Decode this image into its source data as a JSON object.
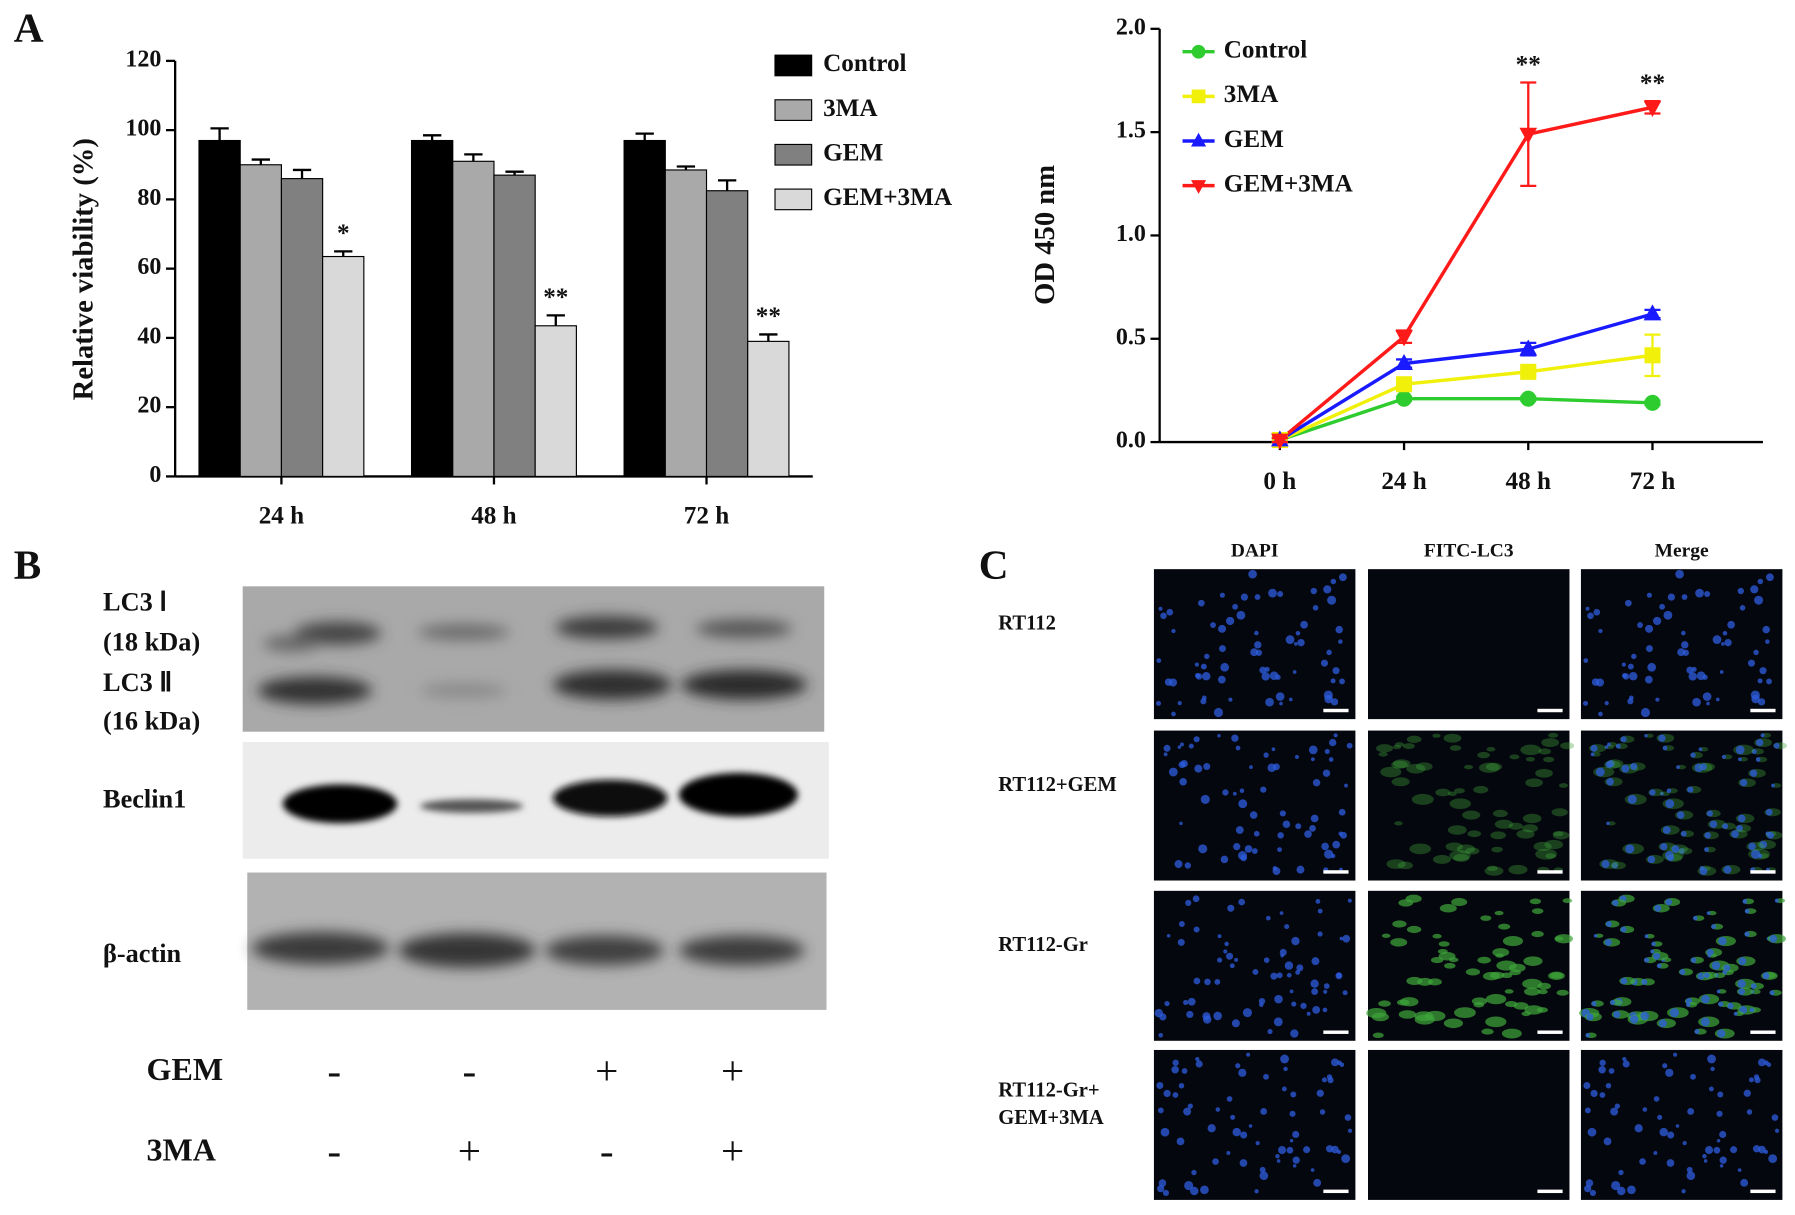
{
  "panel_labels": [
    "A",
    "B",
    "C"
  ],
  "chart_data": [
    {
      "type": "bar",
      "ylabel": "Relative viability (%)",
      "categories": [
        "24 h",
        "48 h",
        "72 h"
      ],
      "ylim": [
        0,
        120
      ],
      "yticks": [
        0,
        20,
        40,
        60,
        80,
        100,
        120
      ],
      "legend": "right",
      "series": [
        {
          "name": "Control",
          "color": "#000000",
          "values": [
            97,
            97,
            97
          ],
          "errors": [
            3.5,
            1.5,
            2
          ]
        },
        {
          "name": "3MA",
          "color": "#a9a9a9",
          "values": [
            90,
            91,
            88.5
          ],
          "errors": [
            1.5,
            2,
            1
          ]
        },
        {
          "name": "GEM",
          "color": "#808080",
          "values": [
            86,
            87,
            82.5
          ],
          "errors": [
            2.5,
            1,
            3
          ]
        },
        {
          "name": "GEM+3MA",
          "color": "#d9d9d9",
          "values": [
            63.5,
            43.5,
            39
          ],
          "errors": [
            1.5,
            3,
            2
          ],
          "labels": [
            "*",
            "**",
            "**"
          ]
        }
      ]
    },
    {
      "type": "line",
      "ylabel": "OD 450 nm",
      "categories": [
        "0 h",
        "24 h",
        "48 h",
        "72 h"
      ],
      "ylim": [
        0,
        2
      ],
      "yticks": [
        {
          "value": 0,
          "label": "0.0"
        },
        {
          "value": 0.5,
          "label": "0.5"
        },
        {
          "value": 1,
          "label": "1.0"
        },
        {
          "value": 1.5,
          "label": "1.5"
        },
        {
          "value": 2,
          "label": "2.0"
        }
      ],
      "legend": "upper left",
      "series": [
        {
          "name": "Control",
          "color": "#2ecc2e",
          "marker": "circle",
          "values": [
            0.01,
            0.21,
            0.21,
            0.19
          ],
          "errors": [
            0.01,
            0.01,
            0.01,
            0.01
          ]
        },
        {
          "name": "3MA",
          "color": "#f0f00a",
          "marker": "square",
          "values": [
            0.01,
            0.28,
            0.34,
            0.42
          ],
          "errors": [
            0.01,
            0.02,
            0.02,
            0.1
          ]
        },
        {
          "name": "GEM",
          "color": "#1a1aff",
          "marker": "triangle-up",
          "values": [
            0.01,
            0.38,
            0.45,
            0.62
          ],
          "errors": [
            0.01,
            0.02,
            0.03,
            0.02
          ]
        },
        {
          "name": "GEM+3MA",
          "color": "#ff1a1a",
          "marker": "triangle-down",
          "values": [
            0.01,
            0.51,
            1.49,
            1.62
          ],
          "errors": [
            0.01,
            0.03,
            0.25,
            0.03
          ],
          "labels": [
            null,
            null,
            "**",
            "**"
          ]
        }
      ]
    }
  ],
  "western_blot": {
    "bands": [
      "LC3 Ⅰ",
      "(18 kDa)",
      "LC3 Ⅱ",
      "(16 kDa)",
      "Beclin1",
      "β-actin"
    ],
    "treatments": [
      {
        "name": "GEM",
        "signs": [
          "-",
          "-",
          "+",
          "+"
        ]
      },
      {
        "name": "3MA",
        "signs": [
          "-",
          "+",
          "-",
          "+"
        ]
      }
    ]
  },
  "immunofluorescence": {
    "columns": [
      "DAPI",
      "FITC-LC3",
      "Merge"
    ],
    "rows": [
      [
        "RT112"
      ],
      [
        "RT112+GEM"
      ],
      [
        "RT112-Gr"
      ],
      [
        "RT112-Gr+",
        "GEM+3MA"
      ]
    ]
  }
}
